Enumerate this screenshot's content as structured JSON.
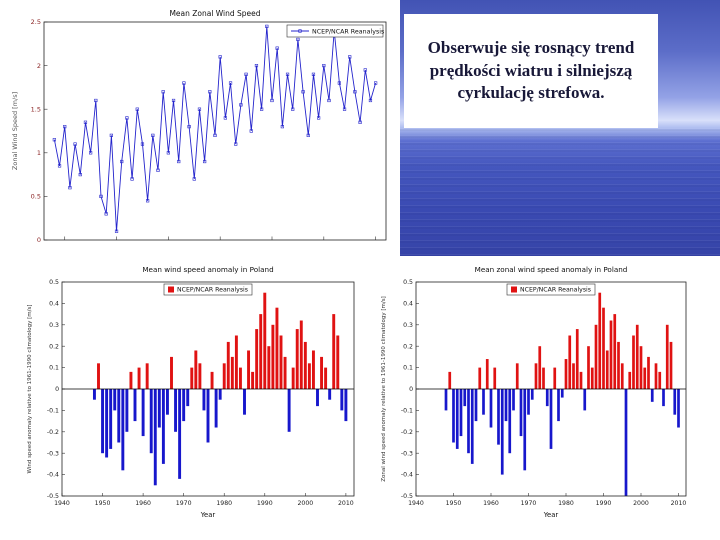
{
  "slide": {
    "background": "#ffffff"
  },
  "photo": {
    "caption": "Obserwuje się rosnący trend prędkości wiatru i silniejszą cyrkulację strefowa.",
    "colors": {
      "sky_top": "#4253b4",
      "horizon": "#d9e0fa",
      "water_deep": "#3644a8"
    }
  },
  "chart_data": [
    {
      "type": "line",
      "title": "Mean Zonal Wind Speed",
      "legend": [
        "NCEP/NCAR Reanalysis"
      ],
      "legend_position": "top-right",
      "ylabel": "Zonal Wind Speed [m/s]",
      "ylim": [
        0,
        2.5
      ],
      "yticks": [
        0,
        0.5,
        1,
        1.5,
        2,
        2.5
      ],
      "xlim": [
        1946,
        2012
      ],
      "x_start": 1948,
      "grid": false,
      "line_color": "#2424cc",
      "tick_color": "#8b2525",
      "values": [
        1.15,
        0.85,
        1.3,
        0.6,
        1.1,
        0.75,
        1.35,
        1.0,
        1.6,
        0.5,
        0.3,
        1.2,
        0.1,
        0.9,
        1.4,
        0.7,
        1.5,
        1.1,
        0.45,
        1.2,
        0.8,
        1.7,
        1.0,
        1.6,
        0.9,
        1.8,
        1.3,
        0.7,
        1.5,
        0.9,
        1.7,
        1.2,
        2.1,
        1.4,
        1.8,
        1.1,
        1.55,
        1.9,
        1.25,
        2.0,
        1.5,
        2.45,
        1.6,
        2.2,
        1.3,
        1.9,
        1.5,
        2.3,
        1.7,
        1.2,
        1.9,
        1.4,
        2.0,
        1.6,
        2.4,
        1.8,
        1.5,
        2.1,
        1.7,
        1.35,
        1.95,
        1.6,
        1.8
      ]
    },
    {
      "type": "bar",
      "title": "Mean wind speed anomaly in Poland",
      "legend": [
        "NCEP/NCAR Reanalysis"
      ],
      "legend_position": "top-center",
      "ylabel": "Wind speed anomaly relative to 1961-1990 climatology [m/s]",
      "xlabel": "Year",
      "ylim": [
        -0.5,
        0.5
      ],
      "ytick_step": 0.1,
      "xlim": [
        1940,
        2012
      ],
      "xticks": [
        1940,
        1950,
        1960,
        1970,
        1980,
        1990,
        2000,
        2010
      ],
      "x_start": 1948,
      "pos_color": "#e01212",
      "neg_color": "#1717cc",
      "tick_color": "#222222",
      "values": [
        -0.05,
        0.12,
        -0.3,
        -0.32,
        -0.28,
        -0.1,
        -0.25,
        -0.38,
        -0.2,
        0.08,
        -0.15,
        0.1,
        -0.22,
        0.12,
        -0.3,
        -0.45,
        -0.18,
        -0.35,
        -0.12,
        0.15,
        -0.2,
        -0.42,
        -0.15,
        -0.08,
        0.1,
        0.18,
        0.12,
        -0.1,
        -0.25,
        0.08,
        -0.18,
        -0.05,
        0.12,
        0.22,
        0.15,
        0.25,
        0.1,
        -0.12,
        0.18,
        0.08,
        0.28,
        0.35,
        0.45,
        0.2,
        0.3,
        0.38,
        0.25,
        0.15,
        -0.2,
        0.1,
        0.28,
        0.32,
        0.22,
        0.12,
        0.18,
        -0.08,
        0.15,
        0.1,
        -0.05,
        0.35,
        0.25,
        -0.1,
        -0.15
      ]
    },
    {
      "type": "bar",
      "title": "Mean zonal wind speed anomaly in Poland",
      "legend": [
        "NCEP/NCAR Reanalysis"
      ],
      "legend_position": "top-center",
      "ylabel": "Zonal wind speed anomaly relative to 1961-1990 climatology [m/s]",
      "xlabel": "Year",
      "ylim": [
        -0.5,
        0.5
      ],
      "ytick_step": 0.1,
      "xlim": [
        1940,
        2012
      ],
      "xticks": [
        1940,
        1950,
        1960,
        1970,
        1980,
        1990,
        2000,
        2010
      ],
      "x_start": 1948,
      "pos_color": "#e01212",
      "neg_color": "#1717cc",
      "tick_color": "#222222",
      "values": [
        -0.1,
        0.08,
        -0.25,
        -0.28,
        -0.22,
        -0.08,
        -0.3,
        -0.35,
        -0.15,
        0.1,
        -0.12,
        0.14,
        -0.18,
        0.1,
        -0.26,
        -0.4,
        -0.15,
        -0.3,
        -0.1,
        0.12,
        -0.22,
        -0.38,
        -0.12,
        -0.05,
        0.12,
        0.2,
        0.1,
        -0.08,
        -0.28,
        0.1,
        -0.15,
        -0.04,
        0.14,
        0.25,
        0.12,
        0.28,
        0.08,
        -0.1,
        0.2,
        0.1,
        0.3,
        0.45,
        0.38,
        0.18,
        0.32,
        0.35,
        0.22,
        0.12,
        -0.5,
        0.08,
        0.25,
        0.3,
        0.2,
        0.1,
        0.15,
        -0.06,
        0.12,
        0.08,
        -0.08,
        0.3,
        0.22,
        -0.12,
        -0.18
      ]
    }
  ]
}
